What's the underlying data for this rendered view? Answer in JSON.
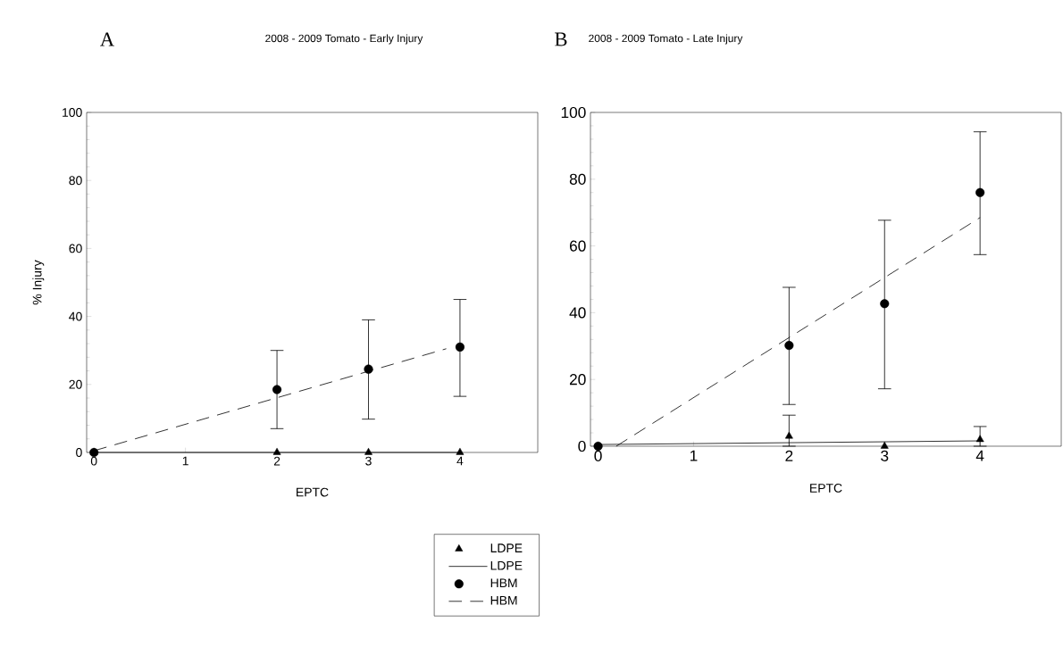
{
  "chart_data": [
    {
      "type": "scatter",
      "title": "A",
      "subtitle": "2008 - 2009 Tomato - Early Injury",
      "xlabel": "EPTC",
      "ylabel": "% Injury",
      "xlim": [
        -0.08,
        4.85
      ],
      "xticks": [
        0,
        1,
        2,
        3,
        4
      ],
      "ylim": [
        0,
        100
      ],
      "yticks": [
        0,
        20,
        40,
        60,
        80,
        100
      ],
      "legend": "bottom right",
      "series": [
        {
          "name": "LDPE",
          "type": "scatter",
          "marker": "triangle",
          "color": "#000000",
          "x": [
            0,
            2,
            3,
            4
          ],
          "values": [
            0,
            0,
            0,
            0
          ]
        },
        {
          "name": "LDPE",
          "type": "line",
          "line_style": "solid",
          "color": "#000000",
          "x": [
            0,
            4
          ],
          "values": [
            0,
            0
          ]
        },
        {
          "name": "HBM",
          "type": "scatter",
          "marker": "circle",
          "color": "#000000",
          "x": [
            0,
            2,
            3,
            4
          ],
          "values": [
            0,
            18.5,
            24.5,
            31
          ],
          "errors": [
            null,
            [
              7,
              30
            ],
            [
              9.8,
              39
            ],
            [
              16.5,
              45
            ]
          ]
        },
        {
          "name": "HBM",
          "type": "line",
          "line_style": "dashed",
          "color": "#000000",
          "x": [
            0,
            3.85
          ],
          "values": [
            0.5,
            30.5
          ]
        }
      ]
    },
    {
      "type": "scatter",
      "title": "B",
      "subtitle": "2008 - 2009 Tomato - Late Injury",
      "xlabel": "EPTC",
      "xlim": [
        -0.08,
        4.85
      ],
      "xticks": [
        0,
        1,
        2,
        3,
        4
      ],
      "ylim": [
        0,
        100
      ],
      "yticks": [
        0,
        20,
        40,
        60,
        80,
        100
      ],
      "series": [
        {
          "type": "scatter",
          "marker": "triangle",
          "color": "#000000",
          "x": [
            2,
            3,
            4
          ],
          "values": [
            3,
            0,
            2
          ],
          "errors": [
            [
              0,
              9.3
            ],
            null,
            [
              0,
              5.9
            ]
          ]
        },
        {
          "type": "line",
          "line_style": "solid",
          "color": "#000000",
          "x": [
            0,
            4
          ],
          "values": [
            0.5,
            1.6
          ]
        },
        {
          "type": "scatter",
          "marker": "circle",
          "color": "#000000",
          "x": [
            0,
            2,
            3,
            4
          ],
          "values": [
            0,
            30.2,
            42.7,
            76
          ],
          "errors": [
            null,
            [
              12.5,
              47.6
            ],
            [
              17.2,
              67.7
            ],
            [
              57.4,
              94.2
            ]
          ]
        },
        {
          "type": "line",
          "line_style": "dashed",
          "color": "#000000",
          "x": [
            0.19,
            4
          ],
          "values": [
            0,
            68.5
          ]
        }
      ]
    }
  ]
}
